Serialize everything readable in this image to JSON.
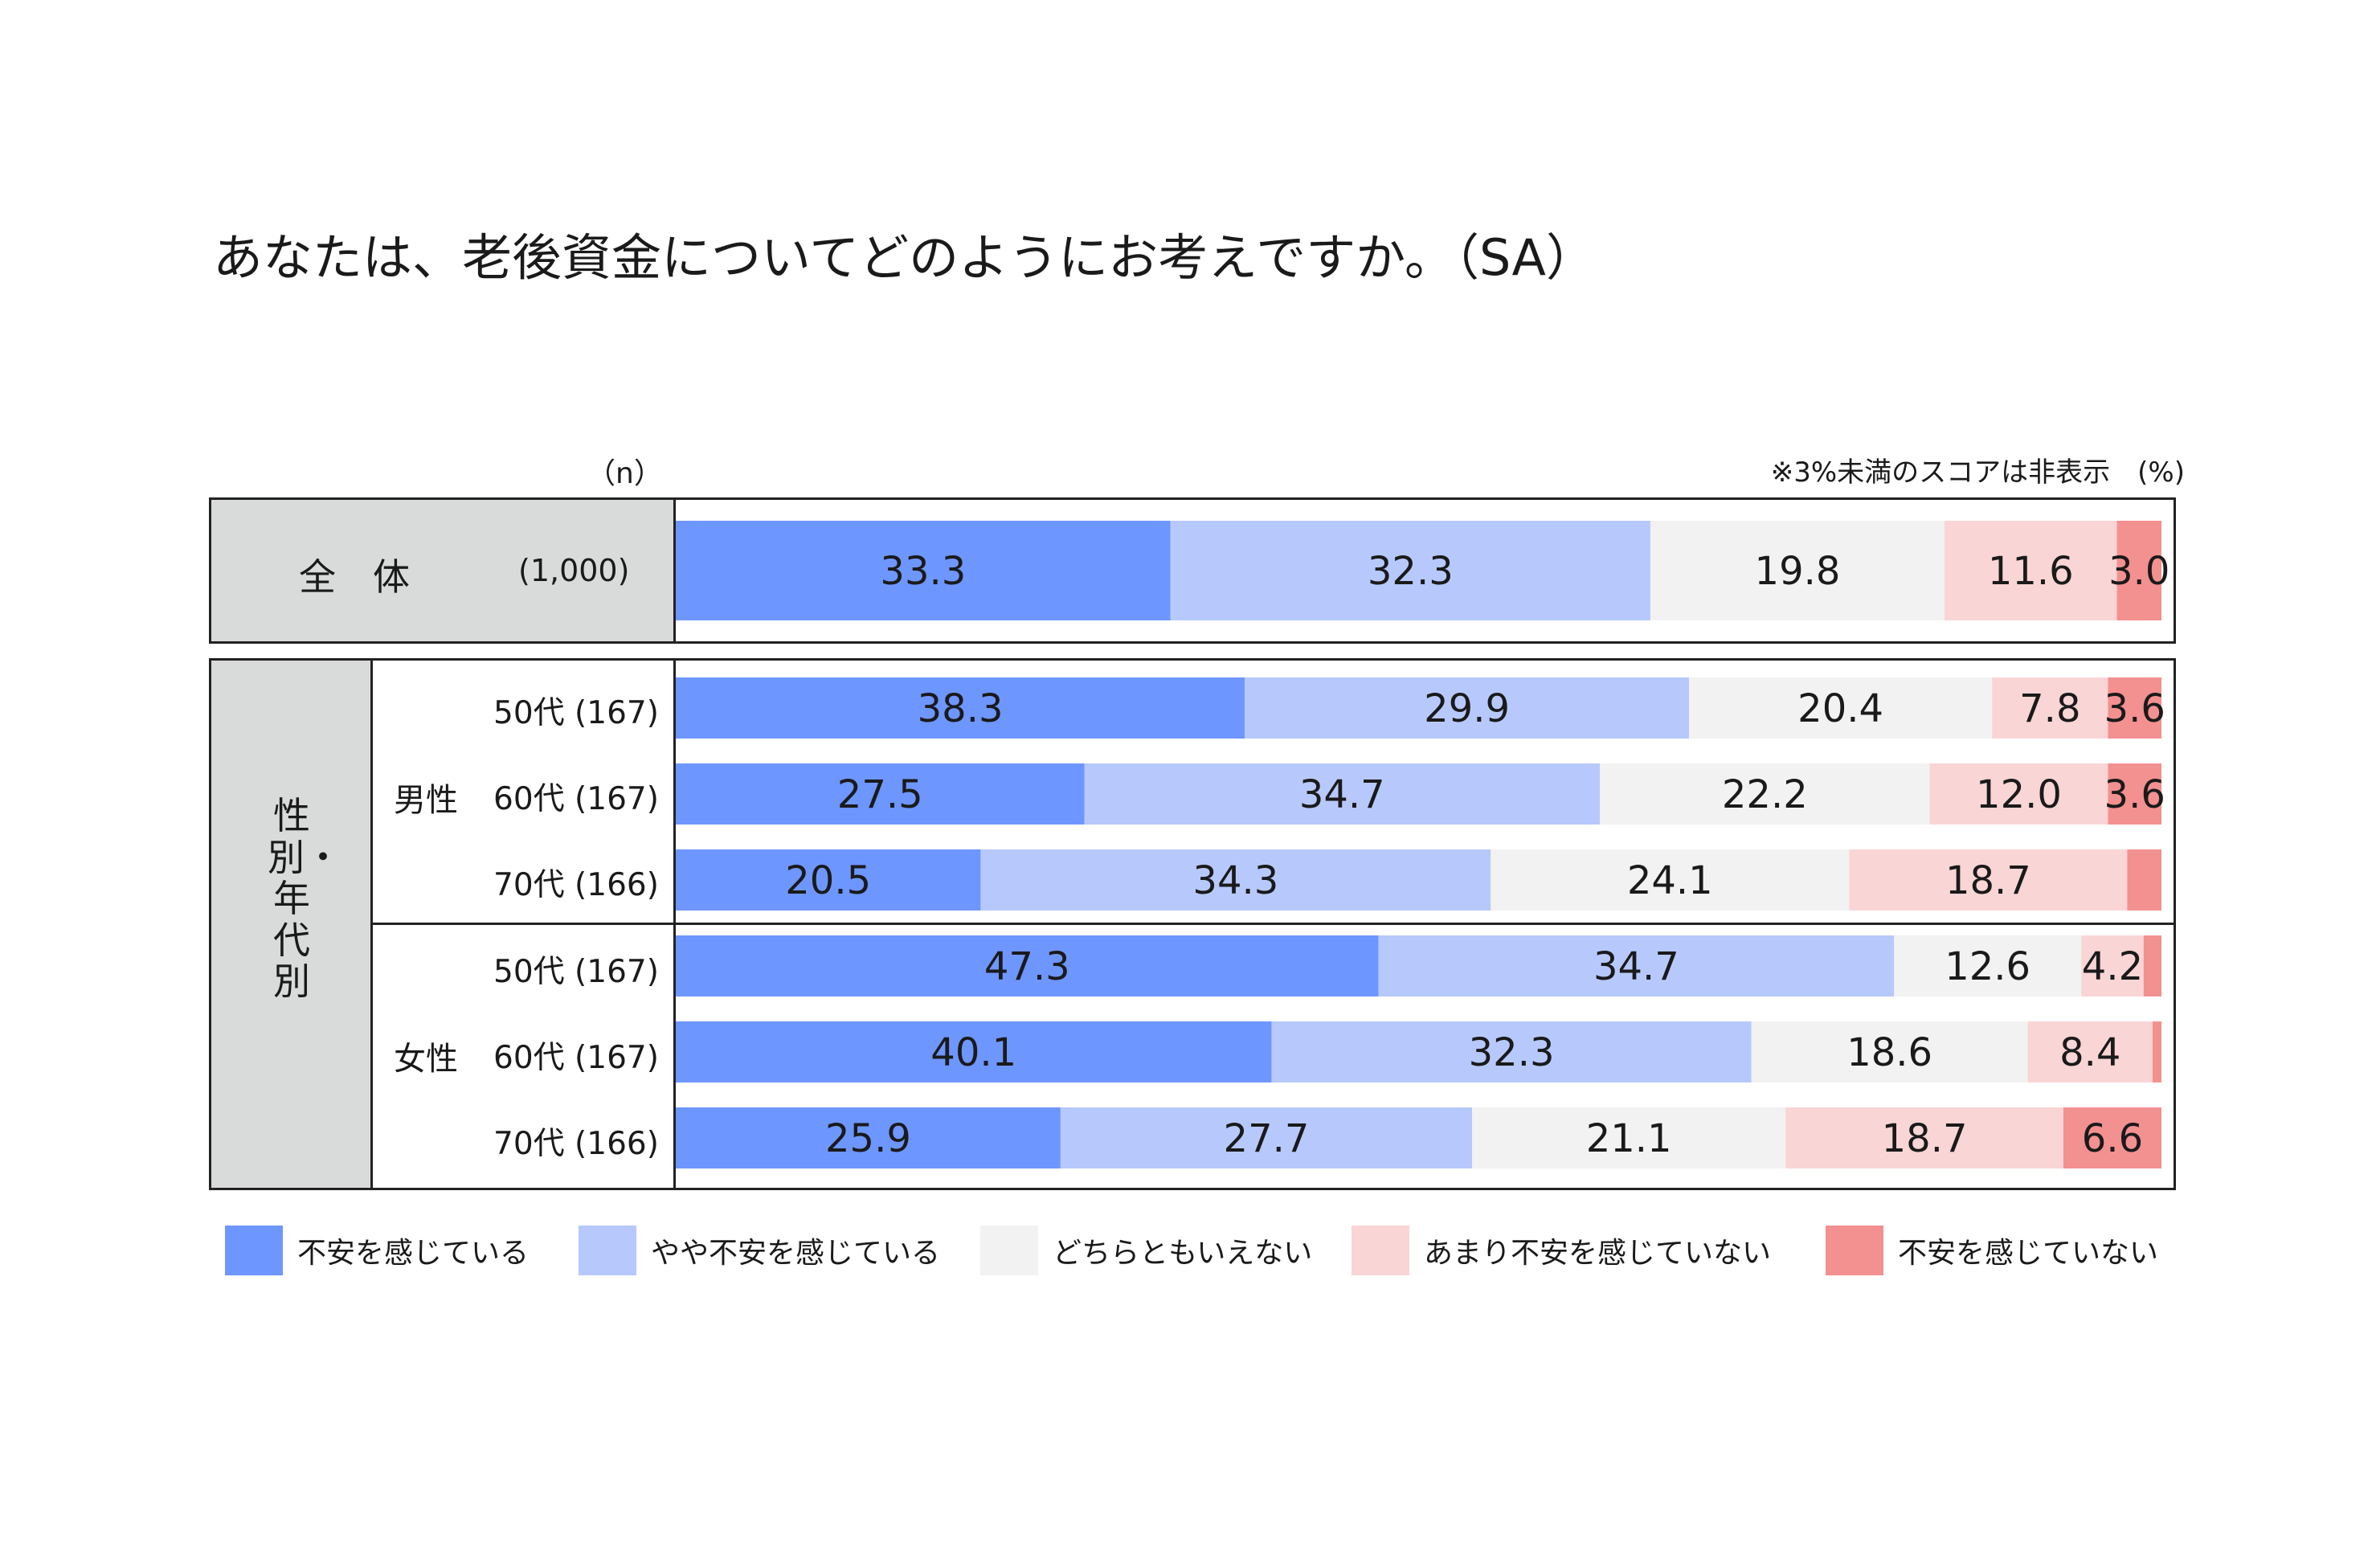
{
  "title": "あなたは、老後資金についてどのようにお考えですか。（SA）",
  "n_header": "（n）",
  "note": "※3%未満のスコアは非表示　(%)",
  "total": {
    "label": "全　体",
    "n": "(1,000)"
  },
  "group_label": "性別・年代別",
  "groups": [
    {
      "label": "男性"
    },
    {
      "label": "女性"
    }
  ],
  "rows": [
    {
      "age": "50代",
      "n": "(167)"
    },
    {
      "age": "60代",
      "n": "(167)"
    },
    {
      "age": "70代",
      "n": "(166)"
    },
    {
      "age": "50代",
      "n": "(167)"
    },
    {
      "age": "60代",
      "n": "(167)"
    },
    {
      "age": "70代",
      "n": "(166)"
    }
  ],
  "legend": [
    {
      "label": "不安を感じている",
      "color": "#6e96ff"
    },
    {
      "label": "やや不安を感じている",
      "color": "#b7c9fc"
    },
    {
      "label": "どちらともいえない",
      "color": "#f2f2f2"
    },
    {
      "label": "あまり不安を感じていない",
      "color": "#f9d5d5"
    },
    {
      "label": "不安を感じていない",
      "color": "#f39090"
    }
  ],
  "chart_data": {
    "type": "stacked_bar_100",
    "title": "あなたは、老後資金についてどのようにお考えですか。（SA）",
    "unit": "%",
    "hide_labels_below": 3,
    "series_names": [
      "不安を感じている",
      "やや不安を感じている",
      "どちらともいえない",
      "あまり不安を感じていない",
      "不安を感じていない"
    ],
    "categories": [
      "全体",
      "男性50代",
      "男性60代",
      "男性70代",
      "女性50代",
      "女性60代",
      "女性70代"
    ],
    "values": [
      [
        33.3,
        32.3,
        19.8,
        11.6,
        3.0
      ],
      [
        38.3,
        29.9,
        20.4,
        7.8,
        3.6
      ],
      [
        27.5,
        34.7,
        22.2,
        12.0,
        3.6
      ],
      [
        20.5,
        34.3,
        24.1,
        18.7,
        2.3
      ],
      [
        47.3,
        34.7,
        12.6,
        4.2,
        1.2
      ],
      [
        40.1,
        32.3,
        18.6,
        8.4,
        0.6
      ],
      [
        25.9,
        27.7,
        21.1,
        18.7,
        6.6
      ]
    ],
    "labels": [
      [
        "33.3",
        "32.3",
        "19.8",
        "11.6",
        "3.0"
      ],
      [
        "38.3",
        "29.9",
        "20.4",
        "7.8",
        "3.6"
      ],
      [
        "27.5",
        "34.7",
        "22.2",
        "12.0",
        "3.6"
      ],
      [
        "20.5",
        "34.3",
        "24.1",
        "18.7",
        ""
      ],
      [
        "47.3",
        "34.7",
        "12.6",
        "4.2",
        ""
      ],
      [
        "40.1",
        "32.3",
        "18.6",
        "8.4",
        ""
      ],
      [
        "25.9",
        "27.7",
        "21.1",
        "18.7",
        "6.6"
      ]
    ]
  }
}
